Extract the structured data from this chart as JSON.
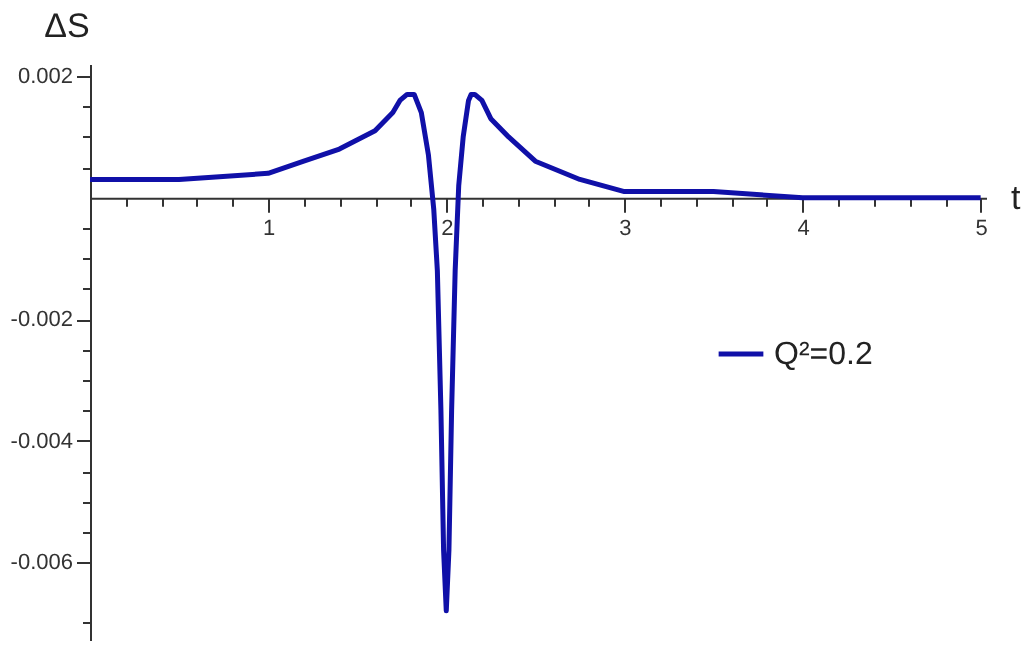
{
  "chart_data": {
    "type": "line",
    "xlabel": "t",
    "ylabel": "ΔS",
    "xlim": [
      0,
      5.03
    ],
    "ylim": [
      -0.00728,
      0.0022
    ],
    "xticks": [
      {
        "value": 0.2,
        "label": null
      },
      {
        "value": 0.4,
        "label": null
      },
      {
        "value": 0.6,
        "label": null
      },
      {
        "value": 0.8,
        "label": null
      },
      1,
      {
        "value": 1.2,
        "label": null
      },
      {
        "value": 1.4,
        "label": null
      },
      {
        "value": 1.6,
        "label": null
      },
      {
        "value": 1.8,
        "label": null
      },
      2,
      {
        "value": 2.2,
        "label": null
      },
      {
        "value": 2.4,
        "label": null
      },
      {
        "value": 2.6,
        "label": null
      },
      {
        "value": 2.8,
        "label": null
      },
      3,
      {
        "value": 3.2,
        "label": null
      },
      {
        "value": 3.4,
        "label": null
      },
      {
        "value": 3.6,
        "label": null
      },
      {
        "value": 3.8,
        "label": null
      },
      4,
      {
        "value": 4.2,
        "label": null
      },
      {
        "value": 4.4,
        "label": null
      },
      {
        "value": 4.6,
        "label": null
      },
      {
        "value": 4.8,
        "label": null
      },
      5
    ],
    "yticks": [
      {
        "value": -0.007,
        "label": null
      },
      -0.006,
      {
        "value": -0.0055,
        "label": null
      },
      {
        "value": -0.005,
        "label": null
      },
      {
        "value": -0.0045,
        "label": null
      },
      -0.004,
      {
        "value": -0.0035,
        "label": null
      },
      {
        "value": -0.003,
        "label": null
      },
      {
        "value": -0.0025,
        "label": null
      },
      -0.002,
      {
        "value": -0.0015,
        "label": null
      },
      {
        "value": -0.001,
        "label": null
      },
      {
        "value": -0.0005,
        "label": null
      },
      {
        "value": 0.0005,
        "label": null
      },
      {
        "value": 0.001,
        "label": null
      },
      {
        "value": 0.0015,
        "label": null
      },
      0.002
    ],
    "legend": "right",
    "grid": false,
    "marker": "none",
    "line_style": "solid",
    "series": [
      {
        "name": "Q²=0.2",
        "color": "#1010a8",
        "x": [
          0,
          0.5,
          1,
          1.2,
          1.4,
          1.6,
          1.7,
          1.74,
          1.78,
          1.8,
          1.82,
          1.86,
          1.9,
          1.93,
          1.95,
          1.97,
          1.985,
          2.0,
          2.015,
          2.03,
          2.05,
          2.07,
          2.095,
          2.125,
          2.14,
          2.16,
          2.2,
          2.25,
          2.35,
          2.5,
          2.75,
          3,
          3.5,
          4,
          5
        ],
        "values": [
          0.0003,
          0.0003,
          0.0004,
          0.0006,
          0.0008,
          0.0011,
          0.0014,
          0.0016,
          0.0017,
          0.0017,
          0.0017,
          0.0014,
          0.0007,
          -0.0002,
          -0.0012,
          -0.0035,
          -0.0058,
          -0.0068,
          -0.0058,
          -0.0035,
          -0.0012,
          0.0002,
          0.001,
          0.0016,
          0.0017,
          0.0017,
          0.0016,
          0.0013,
          0.001,
          0.0006,
          0.0003,
          0.0001,
          0.0001,
          0,
          0
        ]
      }
    ]
  }
}
